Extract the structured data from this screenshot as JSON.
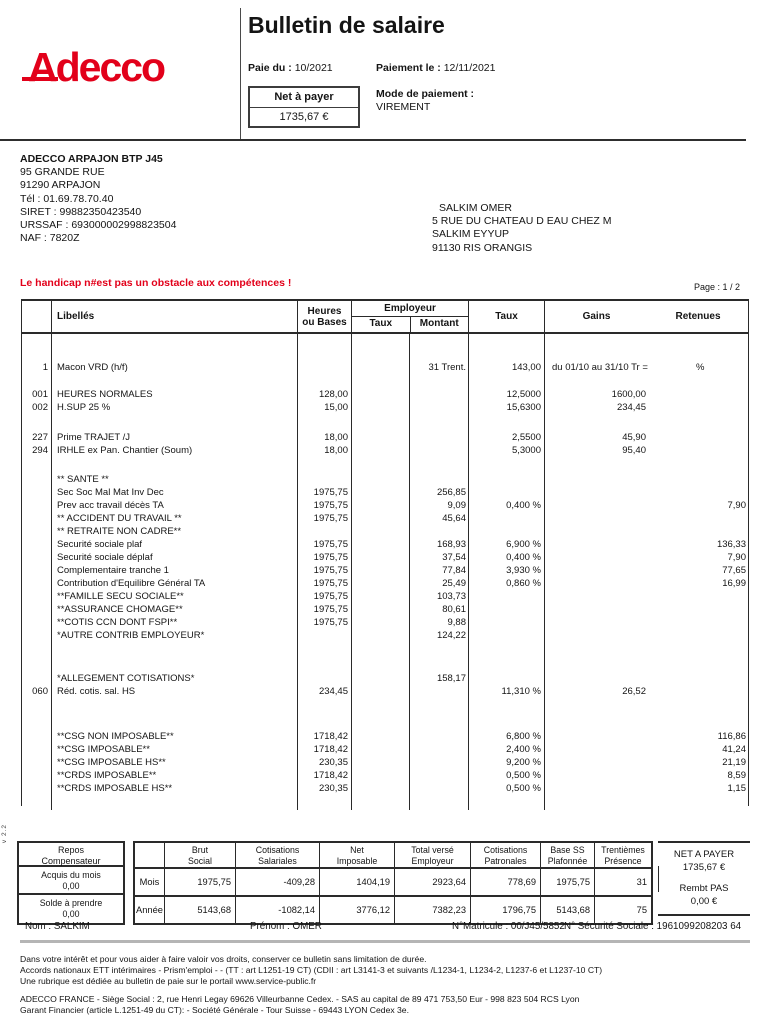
{
  "colors": {
    "accent_red": "#e2001a",
    "line_dark": "#2a2a2a",
    "divider_gray": "#b5b5b5"
  },
  "header": {
    "logo_text": "Adecco",
    "title": "Bulletin de salaire",
    "paie_du_label": "Paie du :",
    "paie_du_value": "10/2021",
    "paiement_le_label": "Paiement le :",
    "paiement_le_value": "12/11/2021",
    "net_a_payer_label": "Net à payer",
    "net_a_payer_value": "1735,67 €",
    "mode_paiement_label": "Mode de paiement :",
    "mode_paiement_value": "VIREMENT"
  },
  "company": {
    "name": "ADECCO ARPAJON BTP J45",
    "lines": [
      "95 GRANDE RUE",
      "91290  ARPAJON",
      "Tél : 01.69.78.70.40",
      "SIRET : 99882350423540",
      "URSSAF : 693000002998823504",
      "NAF : 7820Z"
    ]
  },
  "employee": {
    "lines": [
      "SALKIM OMER",
      "5 RUE DU CHATEAU D EAU CHEZ M",
      "SALKIM EYYUP",
      "91130  RIS ORANGIS"
    ]
  },
  "slogan": "Le handicap n#est pas un obstacle aux compétences !",
  "page_indicator": "Page : 1 / 2",
  "version_label": "v 2.2",
  "table": {
    "headers": {
      "libelles": "Libellés",
      "heures_l1": "Heures",
      "heures_l2": "ou Bases",
      "employeur": "Employeur",
      "emp_taux": "Taux",
      "emp_montant": "Montant",
      "taux": "Taux",
      "gains": "Gains",
      "retenues": "Retenues"
    },
    "rows": [
      {
        "spacer": 27
      },
      {
        "num": "1",
        "libelle": "Macon VRD (h/f)",
        "emp_montant": "31 Trent.",
        "taux": "143,00",
        "gains": "du 01/10 au 31/10 Tr =",
        "retenues": "%",
        "period": true
      },
      {
        "spacer": 14
      },
      {
        "num": "001",
        "libelle": "HEURES NORMALES",
        "heures": "128,00",
        "taux": "12,5000",
        "gains": "1600,00"
      },
      {
        "num": "002",
        "libelle": "H.SUP 25 %",
        "heures": "15,00",
        "taux": "15,6300",
        "gains": "234,45"
      },
      {
        "spacer": 17
      },
      {
        "num": "227",
        "libelle": "Prime TRAJET /J",
        "heures": "18,00",
        "taux": "2,5500",
        "gains": "45,90"
      },
      {
        "num": "294",
        "libelle": "IRHLE ex Pan. Chantier (Soum)",
        "heures": "18,00",
        "taux": "5,3000",
        "gains": "95,40"
      },
      {
        "spacer": 16
      },
      {
        "libelle": "** SANTE **"
      },
      {
        "libelle": "Sec Soc Mal Mat Inv Dec",
        "heures": "1975,75",
        "emp_montant": "256,85"
      },
      {
        "libelle": "Prev acc travail décès TA",
        "heures": "1975,75",
        "emp_montant": "9,09",
        "taux": "0,400 %",
        "retenues": "7,90"
      },
      {
        "libelle": "** ACCIDENT DU TRAVAIL **",
        "heures": "1975,75",
        "emp_montant": "45,64"
      },
      {
        "libelle": "** RETRAITE NON CADRE**"
      },
      {
        "libelle": "Securité sociale plaf",
        "heures": "1975,75",
        "emp_montant": "168,93",
        "taux": "6,900 %",
        "retenues": "136,33"
      },
      {
        "libelle": "Securité sociale déplaf",
        "heures": "1975,75",
        "emp_montant": "37,54",
        "taux": "0,400 %",
        "retenues": "7,90"
      },
      {
        "libelle": "Complementaire tranche 1",
        "heures": "1975,75",
        "emp_montant": "77,84",
        "taux": "3,930 %",
        "retenues": "77,65"
      },
      {
        "libelle": "Contribution d'Equilibre Général TA",
        "heures": "1975,75",
        "emp_montant": "25,49",
        "taux": "0,860 %",
        "retenues": "16,99"
      },
      {
        "libelle": "**FAMILLE SECU SOCIALE**",
        "heures": "1975,75",
        "emp_montant": "103,73"
      },
      {
        "libelle": "**ASSURANCE CHOMAGE**",
        "heures": "1975,75",
        "emp_montant": "80,61"
      },
      {
        "libelle": "**COTIS CCN DONT FSPI**",
        "heures": "1975,75",
        "emp_montant": "9,88"
      },
      {
        "libelle": "*AUTRE CONTRIB EMPLOYEUR*",
        "emp_montant": "124,22"
      },
      {
        "spacer": 30
      },
      {
        "libelle": "*ALLEGEMENT COTISATIONS*",
        "emp_montant": "158,17"
      },
      {
        "num": "060",
        "libelle": "Réd. cotis. sal. HS",
        "heures": "234,45",
        "taux": "11,310 %",
        "gains": "26,52"
      },
      {
        "spacer": 32
      },
      {
        "libelle": "**CSG NON IMPOSABLE**",
        "heures": "1718,42",
        "taux": "6,800 %",
        "retenues": "116,86"
      },
      {
        "libelle": "**CSG IMPOSABLE**",
        "heures": "1718,42",
        "taux": "2,400 %",
        "retenues": "41,24"
      },
      {
        "libelle": "**CSG IMPOSABLE HS**",
        "heures": "230,35",
        "taux": "9,200 %",
        "retenues": "21,19"
      },
      {
        "libelle": "**CRDS IMPOSABLE**",
        "heures": "1718,42",
        "taux": "0,500 %",
        "retenues": "8,59"
      },
      {
        "libelle": "**CRDS IMPOSABLE HS**",
        "heures": "230,35",
        "taux": "0,500 %",
        "retenues": "1,15"
      }
    ]
  },
  "summary": {
    "repos": {
      "title_l1": "Repos",
      "title_l2": "Compensateur",
      "acquis_label": "Acquis du mois",
      "acquis_value": "0,00",
      "solde_label": "Solde à prendre",
      "solde_value": "0,00"
    },
    "main": {
      "columns": [
        {
          "l1": "Brut",
          "l2": "Social"
        },
        {
          "l1": "Cotisations",
          "l2": "Salariales"
        },
        {
          "l1": "Net",
          "l2": "Imposable"
        },
        {
          "l1": "Total versé",
          "l2": "Employeur"
        },
        {
          "l1": "Cotisations",
          "l2": "Patronales"
        },
        {
          "l1": "Base SS",
          "l2": "Plafonnée"
        },
        {
          "l1": "Trentièmes",
          "l2": "Présence"
        }
      ],
      "rows": [
        {
          "label": "Mois",
          "values": [
            "1975,75",
            "-409,28",
            "1404,19",
            "2923,64",
            "778,69",
            "1975,75",
            "31"
          ]
        },
        {
          "label": "Année",
          "values": [
            "5143,68",
            "-1082,14",
            "3776,12",
            "7382,23",
            "1796,75",
            "5143,68",
            "75"
          ]
        }
      ]
    },
    "net": {
      "label": "NET A PAYER",
      "value": "1735,67 €",
      "rembt_label": "Rembt PAS",
      "rembt_value": "0,00 €"
    }
  },
  "identity": {
    "nom": "Nom : SALKIM",
    "prenom": "Prénom : OMER",
    "matricule": "N°Matricule : 00/J45/5852",
    "secu": "N° Sécurité Sociale : 1961099208203 64"
  },
  "footer": {
    "legal_lines": [
      "Dans votre intérêt et pour vous aider à faire valoir vos droits, conserver ce bulletin sans limitation de durée.",
      "Accords nationaux ETT intérimaires - Prism'emploi - - (TT : art L1251-19 CT) (CDII : art L3141-3 et suivants /L1234-1, L1234-2, L1237-6 et L1237-10 CT)",
      "Une rubrique est dédiée au bulletin de paie sur le portail www.service-public.fr"
    ],
    "company_lines": [
      "ADECCO FRANCE - Siège Social : 2, rue Henri Legay 69626 Villeurbanne Cedex. - SAS au capital de 89 471 753,50 Eur - 998 823 504 RCS Lyon",
      "Garant Financier (article L.1251-49 du CT): - Société Générale - Tour Suisse - 69443 LYON Cedex 3e."
    ]
  }
}
